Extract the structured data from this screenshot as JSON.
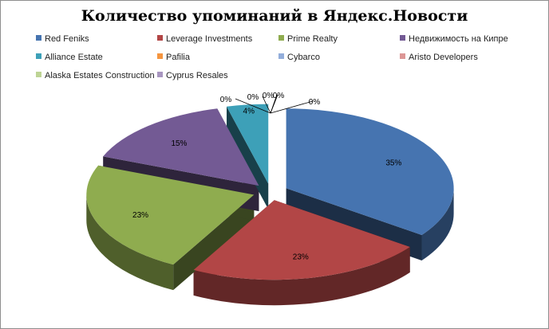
{
  "chart_data": {
    "type": "pie",
    "title": "Количество  упоминаний  в Яндекс.Новости",
    "legend_position": "top",
    "series": [
      {
        "name": "Red Feniks",
        "value": 35,
        "label": "35%",
        "color": "#4674b0"
      },
      {
        "name": "Leverage Investments",
        "value": 23,
        "label": "23%",
        "color": "#b24646"
      },
      {
        "name": "Prime Realty",
        "value": 23,
        "label": "23%",
        "color": "#8fac4f"
      },
      {
        "name": "Недвижимость на Кипре",
        "value": 15,
        "label": "15%",
        "color": "#735a94"
      },
      {
        "name": "Alliance Estate",
        "value": 4,
        "label": "4%",
        "color": "#3da0b8"
      },
      {
        "name": "Pafilia",
        "value": 0,
        "label": "0%",
        "color": "#f59540"
      },
      {
        "name": "Cybarco",
        "value": 0,
        "label": "0%",
        "color": "#93aedb"
      },
      {
        "name": "Aristo Developers",
        "value": 0,
        "label": "0%",
        "color": "#dc9695"
      },
      {
        "name": "Alaska Estates  Construction",
        "value": 0,
        "label": "0%",
        "color": "#bed495"
      },
      {
        "name": "Cyprus Resales",
        "value": 0,
        "label": "0%",
        "color": "#a896c0"
      }
    ]
  }
}
